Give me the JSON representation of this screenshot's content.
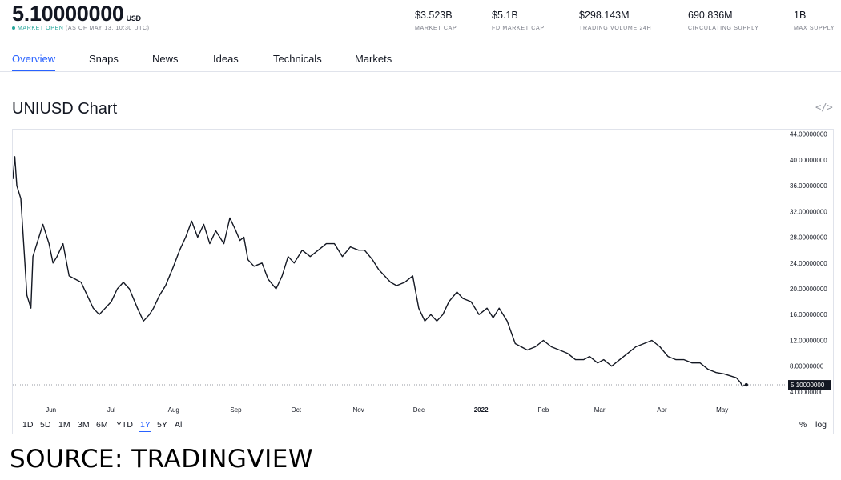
{
  "header": {
    "price": "5.10000000",
    "currency": "USD",
    "status_open": "MARKET OPEN",
    "status_time": "(AS OF MAY 13, 10:30 UTC)",
    "stats": [
      {
        "value": "$3.523B",
        "label": "MARKET CAP"
      },
      {
        "value": "$5.1B",
        "label": "FD MARKET CAP"
      },
      {
        "value": "$298.143M",
        "label": "TRADING VOLUME 24H"
      },
      {
        "value": "690.836M",
        "label": "CIRCULATING SUPPLY"
      },
      {
        "value": "1B",
        "label": "MAX SUPPLY"
      }
    ]
  },
  "tabs": [
    "Overview",
    "Snaps",
    "News",
    "Ideas",
    "Technicals",
    "Markets"
  ],
  "active_tab": "Overview",
  "chart_title": "UNIUSD Chart",
  "embed_icon": "code-embed-icon",
  "ranges": [
    "1D",
    "5D",
    "1M",
    "3M",
    "6M",
    "YTD",
    "1Y",
    "5Y",
    "All"
  ],
  "active_range": "1Y",
  "options": {
    "percent": "%",
    "log": "log"
  },
  "source_caption": "SOURCE: TRADINGVIEW",
  "colors": {
    "accent": "#2962ff",
    "line": "#131722",
    "open": "#26a69a"
  },
  "chart_data": {
    "type": "line",
    "ylim": [
      2.5,
      44.7
    ],
    "y_ticks": [
      "44.00000000",
      "40.00000000",
      "36.00000000",
      "32.00000000",
      "28.00000000",
      "24.00000000",
      "20.00000000",
      "16.00000000",
      "12.00000000",
      "8.00000000",
      "4.00000000"
    ],
    "y_tick_values": [
      44,
      40,
      36,
      32,
      28,
      24,
      20,
      16,
      12,
      8,
      4
    ],
    "x_ticks": [
      "Jun",
      "Jul",
      "Aug",
      "Sep",
      "Oct",
      "Nov",
      "Dec",
      "2022",
      "Feb",
      "Mar",
      "Apr",
      "May"
    ],
    "x_tick_dates": [
      "2021-06-01",
      "2021-07-01",
      "2021-08-01",
      "2021-09-01",
      "2021-10-01",
      "2021-11-01",
      "2021-12-01",
      "2022-01-01",
      "2022-02-01",
      "2022-03-01",
      "2022-04-01",
      "2022-05-01"
    ],
    "xlim": [
      "2021-05-13",
      "2022-06-02"
    ],
    "last_value": 5.1,
    "last_value_label": "5.10000000",
    "series": [
      {
        "x": [
          "2021-05-13",
          "2021-05-14",
          "2021-05-15",
          "2021-05-17",
          "2021-05-19",
          "2021-05-20",
          "2021-05-22",
          "2021-05-23",
          "2021-05-25",
          "2021-05-28",
          "2021-05-31",
          "2021-06-02",
          "2021-06-04",
          "2021-06-07",
          "2021-06-10",
          "2021-06-13",
          "2021-06-16",
          "2021-06-19",
          "2021-06-22",
          "2021-06-25",
          "2021-06-28",
          "2021-07-01",
          "2021-07-04",
          "2021-07-07",
          "2021-07-10",
          "2021-07-14",
          "2021-07-17",
          "2021-07-20",
          "2021-07-22",
          "2021-07-25",
          "2021-07-28",
          "2021-08-01",
          "2021-08-04",
          "2021-08-07",
          "2021-08-10",
          "2021-08-13",
          "2021-08-16",
          "2021-08-19",
          "2021-08-22",
          "2021-08-26",
          "2021-08-29",
          "2021-09-01",
          "2021-09-03",
          "2021-09-05",
          "2021-09-07",
          "2021-09-10",
          "2021-09-14",
          "2021-09-17",
          "2021-09-21",
          "2021-09-24",
          "2021-09-27",
          "2021-09-30",
          "2021-10-04",
          "2021-10-08",
          "2021-10-12",
          "2021-10-16",
          "2021-10-20",
          "2021-10-24",
          "2021-10-28",
          "2021-11-01",
          "2021-11-04",
          "2021-11-08",
          "2021-11-11",
          "2021-11-14",
          "2021-11-17",
          "2021-11-20",
          "2021-11-24",
          "2021-11-28",
          "2021-12-01",
          "2021-12-04",
          "2021-12-07",
          "2021-12-10",
          "2021-12-13",
          "2021-12-16",
          "2021-12-20",
          "2021-12-23",
          "2021-12-27",
          "2021-12-31",
          "2022-01-04",
          "2022-01-07",
          "2022-01-10",
          "2022-01-14",
          "2022-01-18",
          "2022-01-21",
          "2022-01-24",
          "2022-01-28",
          "2022-02-01",
          "2022-02-05",
          "2022-02-09",
          "2022-02-13",
          "2022-02-17",
          "2022-02-21",
          "2022-02-24",
          "2022-02-28",
          "2022-03-03",
          "2022-03-07",
          "2022-03-11",
          "2022-03-15",
          "2022-03-19",
          "2022-03-23",
          "2022-03-27",
          "2022-03-31",
          "2022-04-04",
          "2022-04-08",
          "2022-04-12",
          "2022-04-16",
          "2022-04-20",
          "2022-04-24",
          "2022-04-28",
          "2022-05-02",
          "2022-05-05",
          "2022-05-08",
          "2022-05-10",
          "2022-05-11",
          "2022-05-12",
          "2022-05-13"
        ],
        "values": [
          37.0,
          40.5,
          36.0,
          34.0,
          24.0,
          19.0,
          17.0,
          25.0,
          27.0,
          30.0,
          27.0,
          24.0,
          25.0,
          27.0,
          22.0,
          21.5,
          21.0,
          19.0,
          17.0,
          16.0,
          17.0,
          18.0,
          20.0,
          21.0,
          20.0,
          17.0,
          15.0,
          16.0,
          17.0,
          19.0,
          20.5,
          23.5,
          26.0,
          28.0,
          30.5,
          28.0,
          30.0,
          27.0,
          29.0,
          27.0,
          31.0,
          29.0,
          27.5,
          28.0,
          24.5,
          23.5,
          24.0,
          21.5,
          20.0,
          22.0,
          25.0,
          24.0,
          26.0,
          25.0,
          26.0,
          27.0,
          27.0,
          25.0,
          26.5,
          26.0,
          26.0,
          24.5,
          23.0,
          22.0,
          21.0,
          20.5,
          21.0,
          22.0,
          17.0,
          15.0,
          16.0,
          15.0,
          16.0,
          18.0,
          19.5,
          18.5,
          18.0,
          16.0,
          17.0,
          15.5,
          17.0,
          15.0,
          11.5,
          11.0,
          10.5,
          11.0,
          12.0,
          11.0,
          10.5,
          10.0,
          9.0,
          9.0,
          9.5,
          8.5,
          9.0,
          8.0,
          9.0,
          10.0,
          11.0,
          11.5,
          12.0,
          11.0,
          9.5,
          9.0,
          9.0,
          8.5,
          8.5,
          7.5,
          7.0,
          6.8,
          6.5,
          6.2,
          5.5,
          4.9,
          5.0,
          5.1
        ]
      }
    ]
  }
}
